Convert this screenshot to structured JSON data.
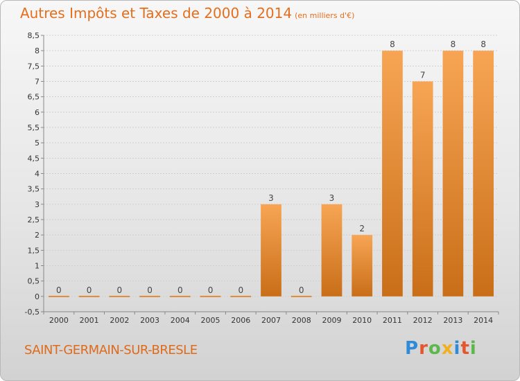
{
  "colors": {
    "bar_light": "#f7a554",
    "bar_dark": "#c96e18",
    "title": "#e46e1c",
    "grid": "#cfcfcf",
    "axis_text": "#333333",
    "logo": [
      "#2f8bd8",
      "#e4572e",
      "#5cb84a",
      "#f2b01e",
      "#2f8bd8",
      "#e4572e",
      "#5cb84a"
    ]
  },
  "header": {
    "title": "Autres Impôts et Taxes de 2000 à 2014",
    "unit": "(en milliers d'€)"
  },
  "footer": {
    "commune": "SAINT-GERMAIN-SUR-BRESLE",
    "logo_text": "Proxiti"
  },
  "chart_data": {
    "type": "bar",
    "title": "Autres Impôts et Taxes de 2000 à 2014",
    "subtitle": "(en milliers d'€)",
    "xlabel": "",
    "ylabel": "",
    "categories": [
      "2000",
      "2001",
      "2002",
      "2003",
      "2004",
      "2005",
      "2006",
      "2007",
      "2008",
      "2009",
      "2010",
      "2011",
      "2012",
      "2013",
      "2014"
    ],
    "values": [
      0,
      0,
      0,
      0,
      0,
      0,
      0,
      3,
      0,
      3,
      2,
      8,
      7,
      8,
      8
    ],
    "data_labels": [
      "0",
      "0",
      "0",
      "0",
      "0",
      "0",
      "0",
      "3",
      "0",
      "3",
      "2",
      "8",
      "7",
      "8",
      "8"
    ],
    "ylim": [
      -0.5,
      8.5
    ],
    "yticks": [
      "-0,5",
      "0",
      "0,5",
      "1",
      "1,5",
      "2",
      "2,5",
      "3",
      "3,5",
      "4",
      "4,5",
      "5",
      "5,5",
      "6",
      "6,5",
      "7",
      "7,5",
      "8",
      "8,5"
    ],
    "grid": true,
    "legend": "none"
  }
}
